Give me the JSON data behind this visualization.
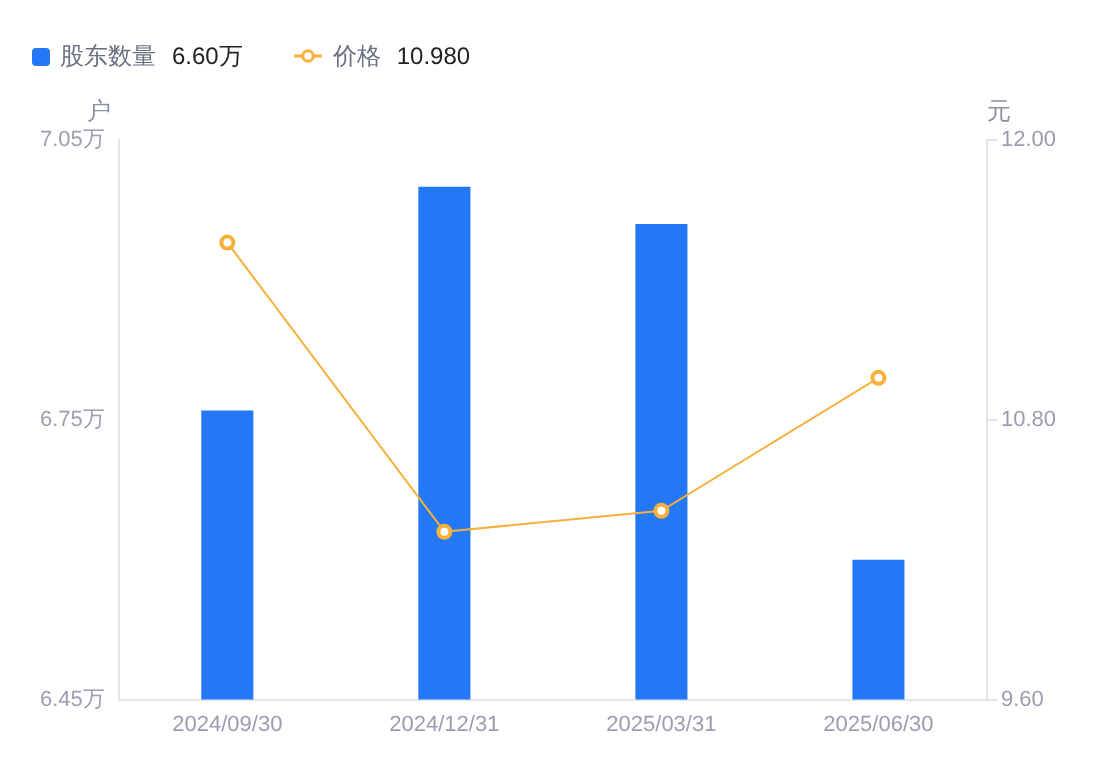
{
  "chart_data": {
    "type": "bar",
    "categories": [
      "2024/09/30",
      "2024/12/31",
      "2025/03/31",
      "2025/06/30"
    ],
    "series": [
      {
        "name": "股东数量",
        "color": "#2477f5",
        "values": [
          6.76,
          7.0,
          6.96,
          6.6
        ]
      },
      {
        "name": "价格",
        "type": "line",
        "axis": "y2",
        "color": "#f7b03c",
        "values": [
          11.56,
          10.32,
          10.41,
          10.98
        ]
      }
    ],
    "annotations": [
      "6.60万",
      "10.980"
    ],
    "ylabel": "户",
    "y2label": "元",
    "ylim": [
      6.45,
      7.05
    ],
    "yticks": [
      {
        "value": 6.45,
        "label": "6.45万"
      },
      {
        "value": 6.75,
        "label": "6.75万"
      },
      {
        "value": 7.05,
        "label": "7.05万"
      }
    ],
    "y2lim": [
      9.6,
      12.0
    ],
    "y2ticks": [
      {
        "value": 9.6,
        "label": "9.60"
      },
      {
        "value": 10.8,
        "label": "10.80"
      },
      {
        "value": 12.0,
        "label": "12.00"
      }
    ],
    "legend": "top left",
    "marker": "circle",
    "grid": false
  }
}
